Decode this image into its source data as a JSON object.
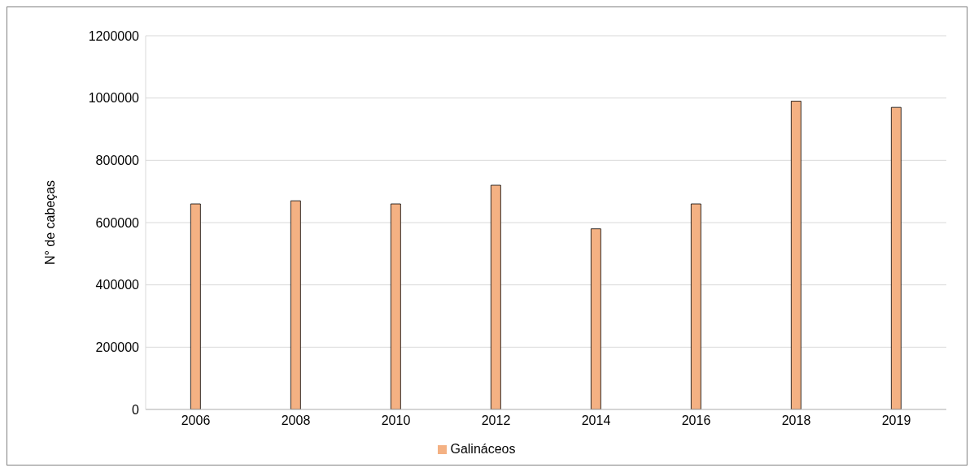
{
  "chart_data": {
    "type": "bar",
    "ylabel": "N° de cabeças",
    "categories": [
      "2006",
      "2008",
      "2010",
      "2012",
      "2014",
      "2016",
      "2018",
      "2019"
    ],
    "series": [
      {
        "name": "Galináceos",
        "color": "#f4b183",
        "values": [
          660000,
          670000,
          660000,
          720000,
          580000,
          660000,
          990000,
          970000
        ]
      }
    ],
    "ylim": [
      0,
      1200000
    ],
    "yticks": [
      0,
      200000,
      400000,
      600000,
      800000,
      1000000,
      1200000
    ],
    "grid": "y",
    "legend": "bottom"
  }
}
